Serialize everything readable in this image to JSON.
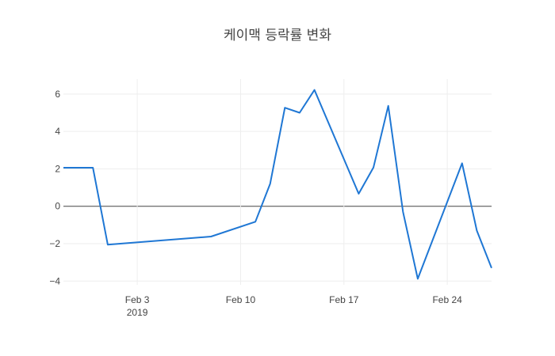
{
  "chart_data": {
    "type": "line",
    "title": "케이맥 등락률 변화",
    "xlabel": "",
    "ylabel": "",
    "ylim": [
      -4.2,
      6.8
    ],
    "xlim": [
      "2019-01-29",
      "2019-02-27"
    ],
    "yticks": [
      6,
      4,
      2,
      0,
      -2,
      -4
    ],
    "ytick_labels": [
      "6",
      "4",
      "2",
      "0",
      "−2",
      "−4"
    ],
    "xticks": [
      {
        "date": "2019-02-03",
        "label": "Feb 3",
        "sublabel": "2019"
      },
      {
        "date": "2019-02-10",
        "label": "Feb 10",
        "sublabel": ""
      },
      {
        "date": "2019-02-17",
        "label": "Feb 17",
        "sublabel": ""
      },
      {
        "date": "2019-02-24",
        "label": "Feb 24",
        "sublabel": ""
      }
    ],
    "grid": true,
    "color": "#1f77d4",
    "series": [
      {
        "x": [
          "2019-01-29",
          "2019-01-30",
          "2019-01-31",
          "2019-02-01",
          "2019-02-08",
          "2019-02-11",
          "2019-02-12",
          "2019-02-13",
          "2019-02-14",
          "2019-02-15",
          "2019-02-18",
          "2019-02-19",
          "2019-02-20",
          "2019-02-21",
          "2019-02-22",
          "2019-02-25",
          "2019-02-26",
          "2019-02-27"
        ],
        "values": [
          2.06,
          2.06,
          2.06,
          -2.05,
          -1.62,
          -0.83,
          1.2,
          5.27,
          5.0,
          6.22,
          0.67,
          2.07,
          5.37,
          -0.3,
          -3.88,
          2.3,
          -1.3,
          -3.3
        ]
      }
    ]
  }
}
